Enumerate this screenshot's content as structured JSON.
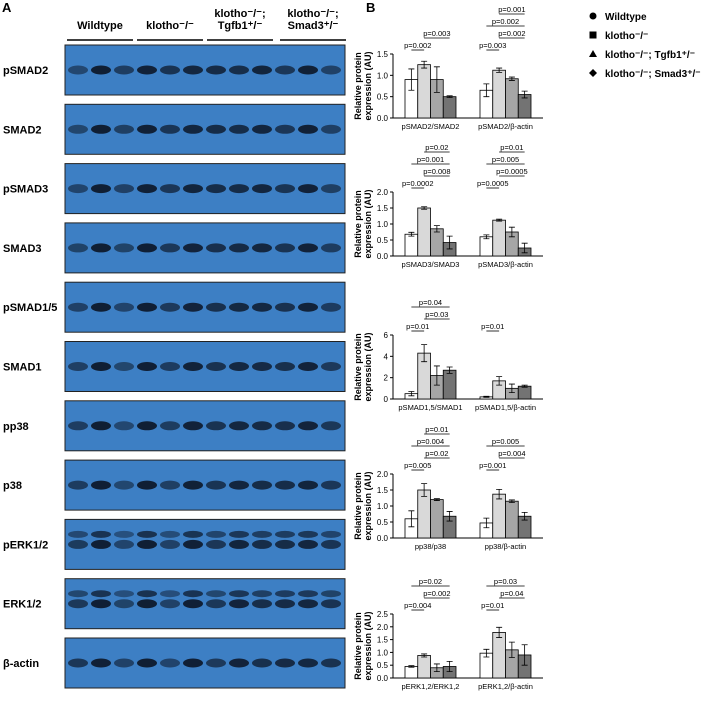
{
  "panel_labels": [
    "A",
    "B"
  ],
  "blot": {
    "groups": [
      "Wildtype",
      "klotho⁻/⁻",
      "klotho⁻/⁻; Tgfb1⁺/⁻",
      "klotho⁻/⁻; Smad3⁺/⁻"
    ],
    "rows": [
      "pSMAD2",
      "SMAD2",
      "pSMAD3",
      "SMAD3",
      "pSMAD1/5",
      "SMAD1",
      "pp38",
      "p38",
      "pERK1/2",
      "ERK1/2",
      "β-actin"
    ]
  },
  "legend": {
    "position": "top-right"
  },
  "chart_data": [
    {
      "type": "bar",
      "ylabel": "Relative protein expression (AU)",
      "categories": [
        "pSMAD2/SMAD2",
        "pSMAD2/β-actin"
      ],
      "ylim": [
        0,
        1.5
      ],
      "yticks": [
        {
          "value": 0,
          "label": "0.0"
        },
        0.5,
        {
          "value": 1,
          "label": "1.0"
        },
        1.5
      ],
      "series": [
        {
          "name": "Wildtype",
          "color": "#ffffff",
          "values": [
            0.9,
            0.65
          ],
          "errors": [
            0.25,
            0.15
          ]
        },
        {
          "name": "klotho⁻/⁻",
          "color": "#d9d9d9",
          "values": [
            1.25,
            1.12
          ],
          "errors": [
            0.08,
            0.05
          ]
        },
        {
          "name": "klotho⁻/⁻; Tgfb1⁺/⁻",
          "color": "#a6a6a6",
          "values": [
            0.9,
            0.92
          ],
          "errors": [
            0.3,
            0.04
          ]
        },
        {
          "name": "klotho⁻/⁻; Smad3⁺/⁻",
          "color": "#737373",
          "values": [
            0.5,
            0.55
          ],
          "errors": [
            0.02,
            0.08
          ]
        }
      ],
      "annotations": [
        [
          "p=0.002",
          "p=0.003"
        ],
        [
          "p=0.003",
          "p=0.002",
          "p=0.002",
          "p=0.001"
        ]
      ]
    },
    {
      "type": "bar",
      "ylabel": "Relative protein expression (AU)",
      "categories": [
        "pSMAD3/SMAD3",
        "pSMAD3/β-actin"
      ],
      "ylim": [
        0,
        2
      ],
      "yticks": [
        {
          "value": 0,
          "label": "0.0"
        },
        0.5,
        {
          "value": 1,
          "label": "1.0"
        },
        1.5,
        {
          "value": 2,
          "label": "2.0"
        }
      ],
      "series": [
        {
          "name": "Wildtype",
          "color": "#ffffff",
          "values": [
            0.68,
            0.6
          ],
          "errors": [
            0.06,
            0.06
          ]
        },
        {
          "name": "klotho⁻/⁻",
          "color": "#d9d9d9",
          "values": [
            1.5,
            1.12
          ],
          "errors": [
            0.04,
            0.03
          ]
        },
        {
          "name": "klotho⁻/⁻; Tgfb1⁺/⁻",
          "color": "#a6a6a6",
          "values": [
            0.85,
            0.75
          ],
          "errors": [
            0.1,
            0.15
          ]
        },
        {
          "name": "klotho⁻/⁻; Smad3⁺/⁻",
          "color": "#737373",
          "values": [
            0.42,
            0.25
          ],
          "errors": [
            0.2,
            0.15
          ]
        }
      ],
      "annotations": [
        [
          "p=0.0002",
          "p=0.008",
          "p=0.001",
          "p=0.02"
        ],
        [
          "p=0.0005",
          "p=0.0005",
          "p=0.005",
          "p=0.01"
        ]
      ]
    },
    {
      "type": "bar",
      "ylabel": "Relative protein expression (AU)",
      "categories": [
        "pSMAD1,5/SMAD1",
        "pSMAD1,5/β-actin"
      ],
      "ylim": [
        0,
        6
      ],
      "yticks": [
        0,
        2,
        4,
        6
      ],
      "series": [
        {
          "name": "Wildtype",
          "color": "#ffffff",
          "values": [
            0.5,
            0.2
          ],
          "errors": [
            0.2,
            0.05
          ]
        },
        {
          "name": "klotho⁻/⁻",
          "color": "#d9d9d9",
          "values": [
            4.3,
            1.7
          ],
          "errors": [
            0.8,
            0.4
          ]
        },
        {
          "name": "klotho⁻/⁻; Tgfb1⁺/⁻",
          "color": "#a6a6a6",
          "values": [
            2.2,
            1.0
          ],
          "errors": [
            0.9,
            0.4
          ]
        },
        {
          "name": "klotho⁻/⁻; Smad3⁺/⁻",
          "color": "#737373",
          "values": [
            2.7,
            1.2
          ],
          "errors": [
            0.3,
            0.1
          ]
        }
      ],
      "annotations": [
        [
          "p=0.01",
          "p=0.03",
          "p=0.04"
        ],
        [
          "p=0.01"
        ]
      ]
    },
    {
      "type": "bar",
      "ylabel": "Relative protein expression (AU)",
      "categories": [
        "pp38/p38",
        "pp38/β-actin"
      ],
      "ylim": [
        0,
        2
      ],
      "yticks": [
        {
          "value": 0,
          "label": "0.0"
        },
        0.5,
        {
          "value": 1,
          "label": "1.0"
        },
        1.5,
        {
          "value": 2,
          "label": "2.0"
        }
      ],
      "series": [
        {
          "name": "Wildtype",
          "color": "#ffffff",
          "values": [
            0.6,
            0.47
          ],
          "errors": [
            0.25,
            0.15
          ]
        },
        {
          "name": "klotho⁻/⁻",
          "color": "#d9d9d9",
          "values": [
            1.5,
            1.37
          ],
          "errors": [
            0.2,
            0.15
          ]
        },
        {
          "name": "klotho⁻/⁻; Tgfb1⁺/⁻",
          "color": "#a6a6a6",
          "values": [
            1.2,
            1.15
          ],
          "errors": [
            0.03,
            0.04
          ]
        },
        {
          "name": "klotho⁻/⁻; Smad3⁺/⁻",
          "color": "#737373",
          "values": [
            0.68,
            0.68
          ],
          "errors": [
            0.15,
            0.12
          ]
        }
      ],
      "annotations": [
        [
          "p=0.005",
          "p=0.02",
          "p=0.004",
          "p=0.01"
        ],
        [
          "p=0.001",
          "p=0.004",
          "p=0.005"
        ]
      ]
    },
    {
      "type": "bar",
      "ylabel": "Relative protein expression (AU)",
      "categories": [
        "pERK1,2/ERK1,2",
        "pERK1,2/β-actin"
      ],
      "ylim": [
        0,
        2.5
      ],
      "yticks": [
        {
          "value": 0,
          "label": "0.0"
        },
        0.5,
        {
          "value": 1,
          "label": "1.0"
        },
        1.5,
        {
          "value": 2,
          "label": "2.0"
        },
        2.5
      ],
      "series": [
        {
          "name": "Wildtype",
          "color": "#ffffff",
          "values": [
            0.45,
            0.97
          ],
          "errors": [
            0.03,
            0.15
          ]
        },
        {
          "name": "klotho⁻/⁻",
          "color": "#d9d9d9",
          "values": [
            0.88,
            1.78
          ],
          "errors": [
            0.06,
            0.2
          ]
        },
        {
          "name": "klotho⁻/⁻; Tgfb1⁺/⁻",
          "color": "#a6a6a6",
          "values": [
            0.4,
            1.1
          ],
          "errors": [
            0.15,
            0.3
          ]
        },
        {
          "name": "klotho⁻/⁻; Smad3⁺/⁻",
          "color": "#737373",
          "values": [
            0.45,
            0.9
          ],
          "errors": [
            0.2,
            0.4
          ]
        }
      ],
      "annotations": [
        [
          "p=0.004",
          "p=0.002",
          "p=0.02"
        ],
        [
          "p=0.01",
          "p=0.04",
          "p=0.03"
        ]
      ]
    }
  ]
}
